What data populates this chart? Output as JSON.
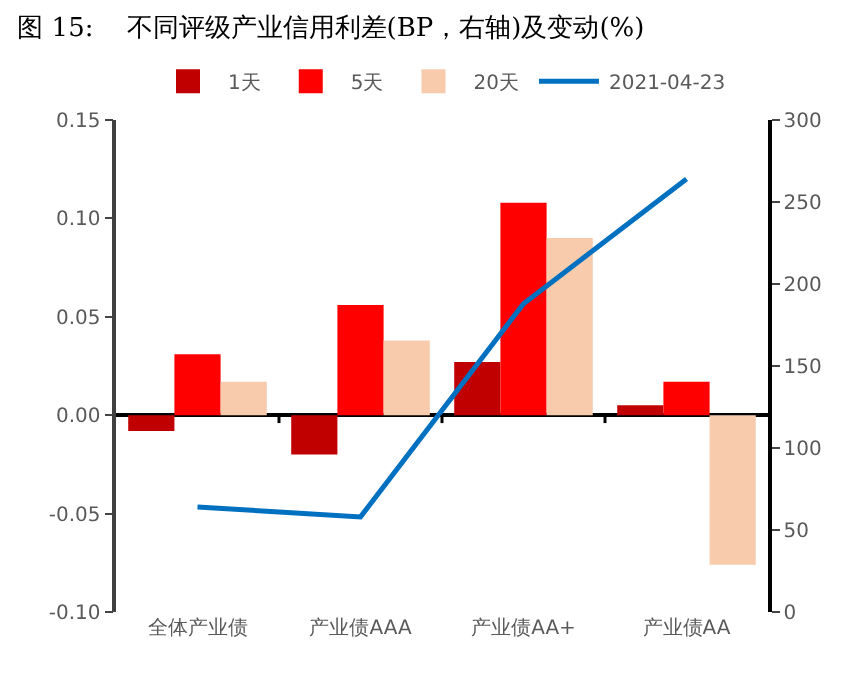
{
  "chart_data": {
    "type": "bar",
    "title": "图 15:    不同评级产业信用利差(BP，右轴)及变动(%)",
    "categories": [
      "全体产业债",
      "产业债AAA",
      "产业债AA+",
      "产业债AA"
    ],
    "series": [
      {
        "name": "1天",
        "color": "#c00000",
        "values": [
          -0.008,
          -0.02,
          0.027,
          0.005
        ]
      },
      {
        "name": "5天",
        "color": "#ff0000",
        "values": [
          0.031,
          0.056,
          0.108,
          0.017
        ]
      },
      {
        "name": "20天",
        "color": "#f8cbad",
        "values": [
          0.017,
          0.038,
          0.09,
          -0.076
        ]
      },
      {
        "name": "2021-04-23",
        "type": "line",
        "axis": "y2",
        "color": "#0070c0",
        "values": [
          64,
          58,
          188,
          264
        ]
      }
    ],
    "ylim": [
      -0.1,
      0.15
    ],
    "yticks": [
      {
        "value": -0.1,
        "label": "-0.10"
      },
      {
        "value": -0.05,
        "label": "-0.05"
      },
      {
        "value": 0,
        "label": "0.00"
      },
      {
        "value": 0.05,
        "label": "0.05"
      },
      {
        "value": 0.1,
        "label": "0.10"
      },
      {
        "value": 0.15,
        "label": "0.15"
      }
    ],
    "y2lim": [
      0,
      300
    ],
    "y2ticks": [
      0,
      50,
      100,
      150,
      200,
      250,
      300
    ],
    "legend": "top",
    "marker": "none",
    "line_style": "solid"
  }
}
